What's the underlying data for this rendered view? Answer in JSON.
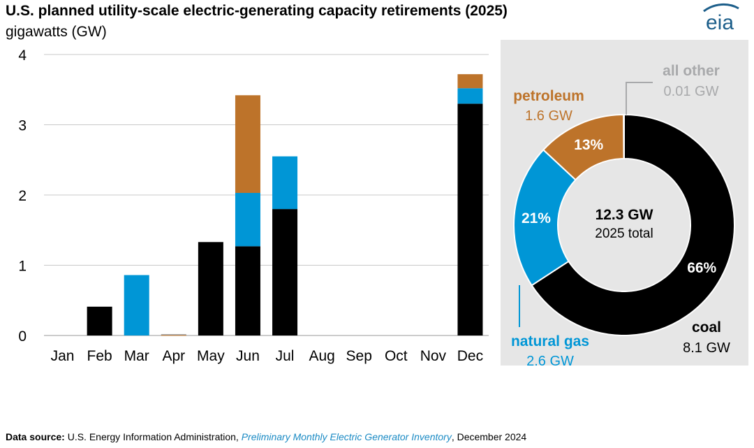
{
  "header": {
    "title": "U.S. planned utility-scale electric-generating capacity retirements (2025)",
    "unit": "gigawatts (GW)",
    "logo_text": "eia"
  },
  "colors": {
    "coal": "#000000",
    "natural_gas": "#0096d6",
    "petroleum": "#bd732a",
    "all_other": "#a8a9ab",
    "panel_bg": "#e6e6e6",
    "logo": "#1c5e8a"
  },
  "chart_data": [
    {
      "type": "bar",
      "stacked": true,
      "categories": [
        "Jan",
        "Feb",
        "Mar",
        "Apr",
        "May",
        "Jun",
        "Jul",
        "Aug",
        "Sep",
        "Oct",
        "Nov",
        "Dec"
      ],
      "series": [
        {
          "name": "coal",
          "color": "#000000",
          "values": [
            0,
            0.41,
            0,
            0,
            1.33,
            1.27,
            1.8,
            0,
            0,
            0,
            0,
            3.3
          ]
        },
        {
          "name": "natural gas",
          "color": "#0096d6",
          "values": [
            0,
            0,
            0.86,
            0,
            0,
            0.76,
            0.75,
            0,
            0,
            0,
            0,
            0.22
          ]
        },
        {
          "name": "petroleum",
          "color": "#bd732a",
          "values": [
            0,
            0,
            0,
            0.01,
            0,
            1.39,
            0,
            0,
            0,
            0,
            0,
            0.2
          ]
        },
        {
          "name": "all other",
          "color": "#a8a9ab",
          "values": [
            0,
            0,
            0,
            0.01,
            0,
            0,
            0,
            0,
            0,
            0,
            0,
            0
          ]
        }
      ],
      "ylim": [
        0,
        4
      ],
      "yticks": [
        0,
        1,
        2,
        3,
        4
      ],
      "xlabel": "",
      "ylabel": "gigawatts (GW)"
    },
    {
      "type": "pie",
      "style": "donut",
      "center_value": "12.3 GW",
      "center_label": "2025 total",
      "slices": [
        {
          "name": "coal",
          "value": 8.1,
          "value_label": "8.1 GW",
          "percent_label": "66%",
          "color": "#000000"
        },
        {
          "name": "natural gas",
          "value": 2.6,
          "value_label": "2.6 GW",
          "percent_label": "21%",
          "color": "#0096d6"
        },
        {
          "name": "petroleum",
          "value": 1.6,
          "value_label": "1.6 GW",
          "percent_label": "13%",
          "color": "#bd732a"
        },
        {
          "name": "all other",
          "value": 0.01,
          "value_label": "0.01 GW",
          "percent_label": "",
          "color": "#a8a9ab"
        }
      ]
    }
  ],
  "footer": {
    "label": "Data source:",
    "org": "U.S. Energy Information Administration,",
    "publication": "Preliminary Monthly Electric Generator Inventory",
    "date": ", December 2024"
  }
}
